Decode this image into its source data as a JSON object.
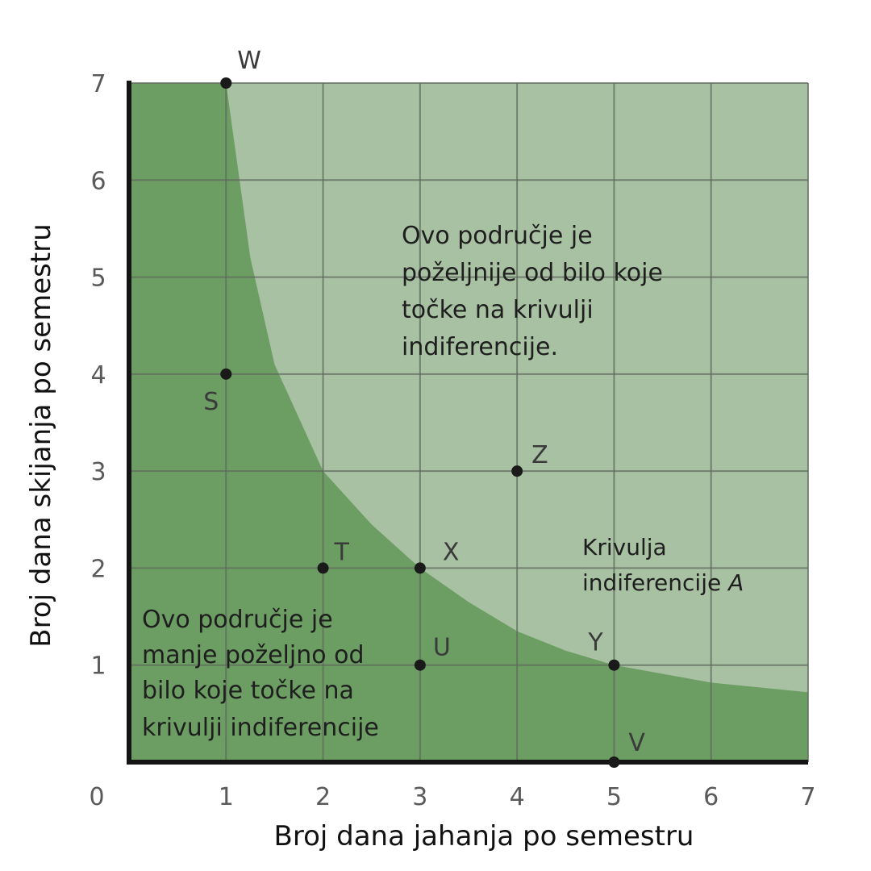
{
  "chart_data": {
    "type": "line",
    "xlabel": "Broj dana jahanja po semestru",
    "ylabel": "Broj dana skijanja po semestru",
    "xlim": [
      0,
      7
    ],
    "ylim": [
      0,
      7
    ],
    "xticks": [
      "0",
      "1",
      "2",
      "3",
      "4",
      "5",
      "6",
      "7"
    ],
    "yticks": [
      "1",
      "2",
      "3",
      "4",
      "5",
      "6",
      "7"
    ],
    "grid": true,
    "series": [
      {
        "name": "Krivulja indiferencije A",
        "x": [
          1,
          1.25,
          1.5,
          2,
          2.5,
          3,
          3.5,
          4,
          4.5,
          5,
          6,
          7
        ],
        "y": [
          7,
          5.2,
          4.1,
          3.0,
          2.45,
          2.0,
          1.65,
          1.35,
          1.15,
          1.0,
          0.82,
          0.72
        ]
      }
    ],
    "points": [
      {
        "label": "W",
        "x": 1,
        "y": 7
      },
      {
        "label": "S",
        "x": 1,
        "y": 4
      },
      {
        "label": "T",
        "x": 2,
        "y": 2
      },
      {
        "label": "X",
        "x": 3,
        "y": 2
      },
      {
        "label": "U",
        "x": 3,
        "y": 1
      },
      {
        "label": "Z",
        "x": 4,
        "y": 3
      },
      {
        "label": "Y",
        "x": 5,
        "y": 1
      },
      {
        "label": "V",
        "x": 5,
        "y": 0
      }
    ],
    "annotations": {
      "upper": [
        "Ovo područje je",
        "poželjnije od bilo koje",
        "točke na krivulji",
        "indiferencije."
      ],
      "lower": [
        "Ovo područje je",
        "manje poželjno od",
        "bilo koje točke na",
        "krivulji indiferencije"
      ],
      "curve_label_line1": "Krivulja",
      "curve_label_line2_text": "indiferencije ",
      "curve_label_line2_italic": "A"
    },
    "colors": {
      "upper_region": "#a8c1a3",
      "lower_region": "#6c9e63",
      "grid": "#5f6b5d",
      "axis": "#141414",
      "point": "#1a1a1a"
    }
  }
}
